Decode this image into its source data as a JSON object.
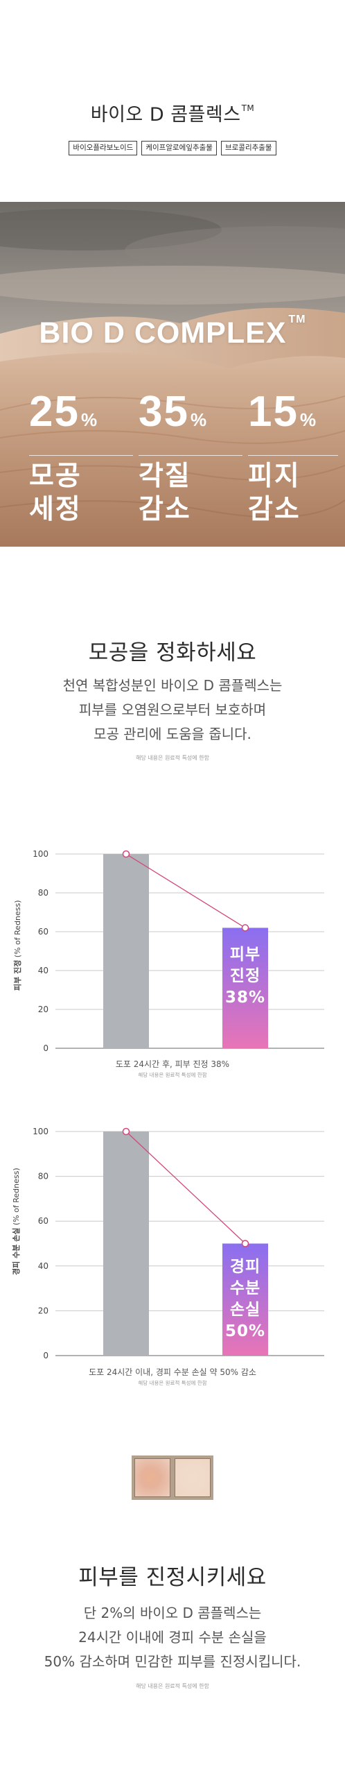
{
  "header": {
    "title": "바이오 D 콤플렉스",
    "title_mark": "TM",
    "tags": [
      "바이오플라보노이드",
      "케이프알로에잎추출물",
      "브로콜리추출물"
    ]
  },
  "hero": {
    "title": "BIO D COMPLEX",
    "title_mark": "TM",
    "stats": [
      {
        "value": "25",
        "unit": "%",
        "label_line1": "모공",
        "label_line2": "세정"
      },
      {
        "value": "35",
        "unit": "%",
        "label_line1": "각질",
        "label_line2": "감소"
      },
      {
        "value": "15",
        "unit": "%",
        "label_line1": "피지",
        "label_line2": "감소"
      }
    ]
  },
  "section1": {
    "title": "모공을 정화하세요",
    "body_line1": "천연 복합성분인 바이오 D 콤플렉스는",
    "body_line2": "피부를 오염원으로부터 보호하며",
    "body_line3": "모공 관리에 도움을 줍니다.",
    "note": "해당 내용은 원료적 특성에 한함"
  },
  "chart_data": [
    {
      "type": "bar",
      "categories": [
        "",
        ""
      ],
      "values": [
        100,
        62
      ],
      "ylim": [
        0,
        100
      ],
      "yticks": [
        "0",
        "20",
        "40",
        "60",
        "80",
        "100"
      ],
      "ylabel_bold": "피부 진정",
      "ylabel_rest": " (% of Redness)",
      "bar_text_line1": "피부",
      "bar_text_line2": "진정",
      "bar_text_line3": "38%",
      "caption": "도포 24시간 후, 피부 진정 38%",
      "caption_note": "해당 내용은 원료적 특성에 한함",
      "grid": true
    },
    {
      "type": "bar",
      "categories": [
        "",
        ""
      ],
      "values": [
        100,
        50
      ],
      "ylim": [
        0,
        100
      ],
      "yticks": [
        "0",
        "20",
        "40",
        "60",
        "80",
        "100"
      ],
      "ylabel_bold": "경피 수분 손실",
      "ylabel_rest": " (% of Redness)",
      "bar_text_line1": "경피",
      "bar_text_line2": "수분",
      "bar_text_line3": "손실",
      "bar_text_line4": "50%",
      "caption": "도포 24시간 이내, 경피 수분 손실 약 50% 감소",
      "caption_note": "해당 내용은 원료적 특성에 한함",
      "grid": true
    }
  ],
  "section2": {
    "title": "피부를 진정시키세요",
    "body_line1": "단 2%의 바이오 D 콤플렉스는",
    "body_line2": "24시간 이내에 경피 수분 손실을",
    "body_line3": "50% 감소하며 민감한 피부를 진정시킵니다.",
    "note": "해당 내용은 원료적 특성에 한함"
  },
  "colors": {
    "grey_bar": "#b0b3b8",
    "gradient_top": "#8a6ff0",
    "gradient_bottom": "#e874b6",
    "marker_line": "#d2467b"
  }
}
